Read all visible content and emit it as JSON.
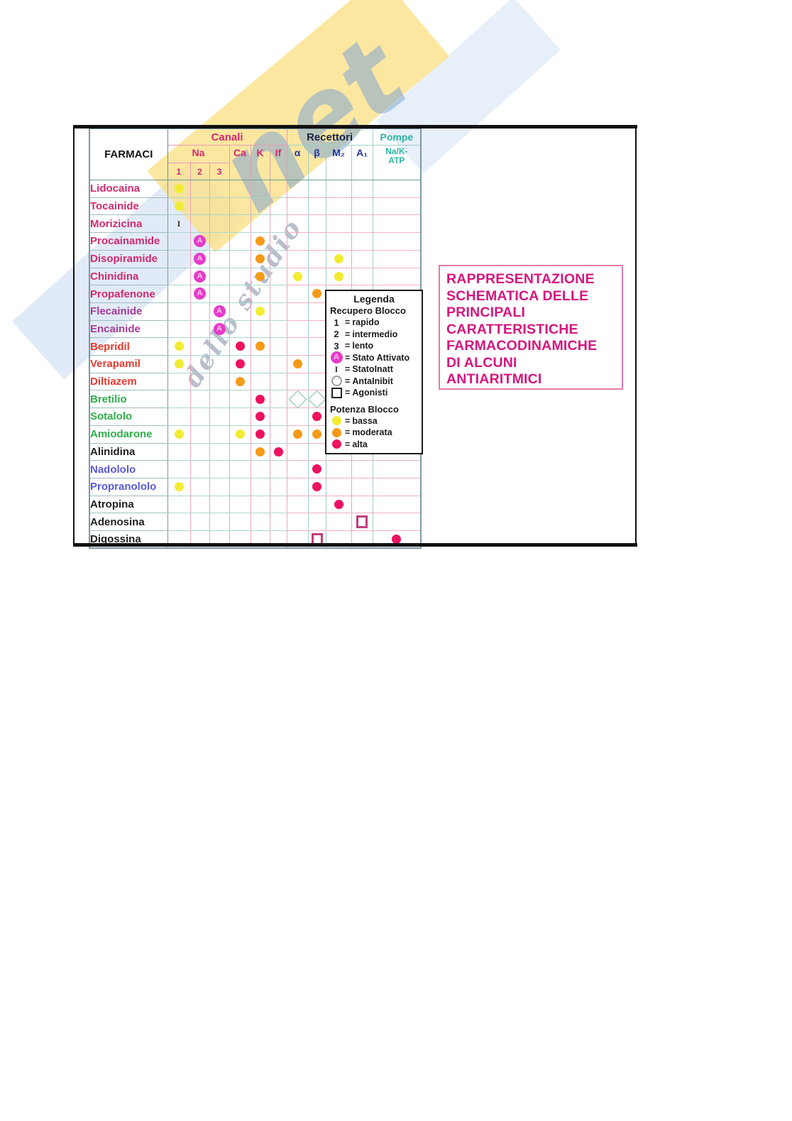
{
  "watermark": {
    "net_text": "net",
    "studio_text": "dello studio"
  },
  "title_box": {
    "lines": [
      "RAPPRESENTAZIONE",
      "SCHEMATICA DELLE",
      "PRINCIPALI",
      "CARATTERISTICHE",
      "FARMACODINAMICHE",
      "DI ALCUNI",
      "ANTIARITMICI"
    ],
    "color": "#d6167e"
  },
  "colors": {
    "canali": "#d4296f",
    "recettori": "#18223f",
    "pompe": "#2bb3a5",
    "bassa": "#f1ec33",
    "moderata": "#f59a18",
    "alta": "#ee1160",
    "attivato": "#e73bc9",
    "agonisti_square": "#c23d7d",
    "diamond": "#b9d8c4"
  },
  "symbols": {
    "attivato_letter": "A",
    "inatt_glyph": "I"
  },
  "table": {
    "header": {
      "farmaci": "FARMACI",
      "canali": "Canali",
      "recettori": "Recettori",
      "pompe": "Pompe",
      "na": "Na",
      "ca": "Ca",
      "k": "K",
      "if": "If",
      "alpha": "α",
      "beta": "β",
      "m2": "M₂",
      "a1": "A₁",
      "nak_line1": "Na/K-",
      "nak_line2": "ATP",
      "sub1": "1",
      "sub2": "2",
      "sub3": "3"
    },
    "column_keys": [
      "na1",
      "na2",
      "na3",
      "ca",
      "k",
      "if",
      "alpha",
      "beta",
      "m2",
      "a1",
      "nak"
    ],
    "rows": [
      {
        "name": "Lidocaina",
        "name_color": "#d4296f",
        "marks": {
          "na1": "bassa"
        }
      },
      {
        "name": "Tocainide",
        "name_color": "#d4296f",
        "marks": {
          "na1": "bassa"
        }
      },
      {
        "name": "Morizicina",
        "name_color": "#d4296f",
        "marks": {
          "na1": "inatt"
        }
      },
      {
        "name": "Procainamide",
        "name_color": "#d4296f",
        "marks": {
          "na2": "attivato",
          "k": "moderata"
        }
      },
      {
        "name": "Disopiramide",
        "name_color": "#d4296f",
        "marks": {
          "na2": "attivato",
          "k": "moderata",
          "m2": "bassa"
        }
      },
      {
        "name": "Chinidina",
        "name_color": "#d4296f",
        "marks": {
          "na2": "attivato",
          "k": "moderata",
          "alpha": "bassa",
          "m2": "bassa"
        }
      },
      {
        "name": "Propafenone",
        "name_color": "#d4296f",
        "marks": {
          "na2": "attivato",
          "beta": "moderata"
        }
      },
      {
        "name": "Flecainide",
        "name_color": "#a83a99",
        "marks": {
          "na3": "attivato",
          "k": "bassa"
        }
      },
      {
        "name": "Encainide",
        "name_color": "#a83a99",
        "marks": {
          "na3": "attivato"
        }
      },
      {
        "name": "Bepridil",
        "name_color": "#e8392f",
        "marks": {
          "na1": "bassa",
          "ca": "alta",
          "k": "moderata"
        }
      },
      {
        "name": "Verapamil",
        "name_color": "#e8392f",
        "marks": {
          "na1": "bassa",
          "ca": "alta",
          "alpha": "moderata"
        }
      },
      {
        "name": "Diltiazem",
        "name_color": "#e8392f",
        "marks": {
          "ca": "moderata"
        }
      },
      {
        "name": "Bretilio",
        "name_color": "#2fae4a",
        "marks": {
          "k": "alta",
          "alpha": "diamond",
          "beta": "diamond"
        }
      },
      {
        "name": "Sotalolo",
        "name_color": "#2fae4a",
        "marks": {
          "k": "alta",
          "beta": "alta"
        }
      },
      {
        "name": "Amiodarone",
        "name_color": "#2fae4a",
        "marks": {
          "na1": "bassa",
          "ca": "bassa",
          "k": "alta",
          "alpha": "moderata",
          "beta": "moderata"
        }
      },
      {
        "name": "Alinidina",
        "name_color": "#1f1f1f",
        "marks": {
          "k": "moderata",
          "if": "alta"
        }
      },
      {
        "name": "Nadololo",
        "name_color": "#5c58d8",
        "marks": {
          "beta": "alta"
        }
      },
      {
        "name": "Propranololo",
        "name_color": "#5c58d8",
        "marks": {
          "na1": "bassa",
          "beta": "alta"
        }
      },
      {
        "name": "Atropina",
        "name_color": "#1f1f1f",
        "marks": {
          "m2": "alta"
        }
      },
      {
        "name": "Adenosina",
        "name_color": "#1f1f1f",
        "marks": {
          "a1": "agonisti"
        }
      },
      {
        "name": "Digossina",
        "name_color": "#1f1f1f",
        "marks": {
          "beta": "agonisti",
          "nak": "alta"
        }
      }
    ]
  },
  "legend": {
    "title": "Legenda",
    "equals_sign": "=",
    "recupero_title": "Recupero Blocco",
    "recupero_items": [
      {
        "glyph": "1",
        "label": "rapido"
      },
      {
        "glyph": "2",
        "label": "intermedio"
      },
      {
        "glyph": "3",
        "label": "lento"
      },
      {
        "sym": "attivato",
        "label": "Stato Attivato"
      },
      {
        "sym": "inatt",
        "label": "StatoInatt"
      },
      {
        "sym": "open-circle",
        "label": "AntaInibit"
      },
      {
        "sym": "open-square",
        "label": "Agonisti"
      }
    ],
    "potenza_title": "Potenza Blocco",
    "potenza_items": [
      {
        "sym": "dot-bassa",
        "label": "bassa"
      },
      {
        "sym": "dot-moderata",
        "label": "moderata"
      },
      {
        "sym": "dot-alta",
        "label": "alta"
      }
    ]
  }
}
